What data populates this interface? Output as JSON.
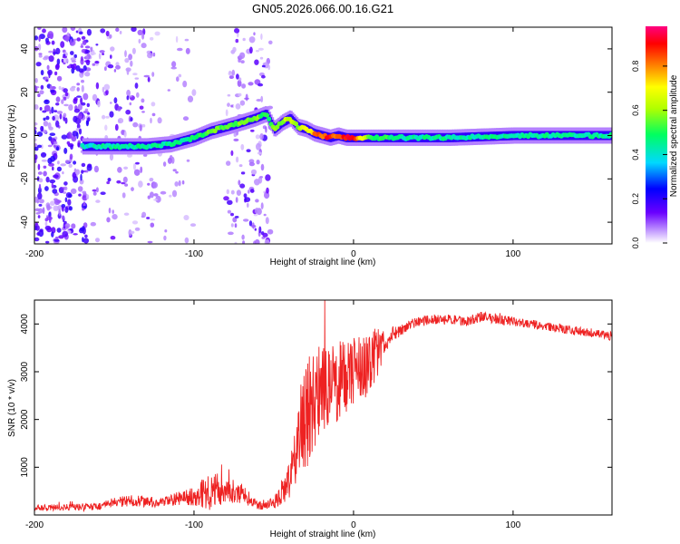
{
  "title": "GN05.2026.066.00.16.G21",
  "chart_data": [
    {
      "type": "heatmap",
      "name": "spectrogram",
      "xlabel": "Height of straight line (km)",
      "ylabel": "Frequency (Hz)",
      "xlim": [
        -200,
        162
      ],
      "ylim": [
        -50,
        50
      ],
      "xticks": [
        -200,
        -100,
        0,
        100
      ],
      "yticks": [
        -40,
        -20,
        0,
        20,
        40
      ],
      "xtick_labels": [
        "-200",
        "-100",
        "0",
        "100"
      ],
      "ytick_labels": [
        "-40",
        "-20",
        "0",
        "20",
        "40"
      ],
      "colorbar": {
        "label": "Normalized spectral amplitude",
        "range": [
          0,
          0.98
        ],
        "ticks": [
          0.0,
          0.2,
          0.4,
          0.6,
          0.8
        ],
        "tick_labels": [
          "0.0",
          "0.2",
          "0.4",
          "0.6",
          "0.8"
        ],
        "colors": [
          "#ffffff",
          "#c9a6ff",
          "#6a00ff",
          "#0000ff",
          "#00d8ff",
          "#00ff60",
          "#b0ff00",
          "#ffff00",
          "#ff8000",
          "#ff0000",
          "#ff0080"
        ]
      },
      "signal_track": {
        "x": [
          -170,
          -150,
          -130,
          -115,
          -100,
          -90,
          -75,
          -62,
          -55,
          -50,
          -45,
          -40,
          -35,
          -30,
          -25,
          -20,
          -15,
          -10,
          -5,
          0,
          10,
          30,
          60,
          100,
          140,
          162
        ],
        "frequency_hz": [
          -5,
          -5,
          -5,
          -4,
          -1,
          2,
          5,
          8,
          10,
          3,
          6,
          8,
          4,
          3,
          1,
          0,
          -1,
          0,
          -1,
          -1,
          -1,
          -1,
          -1,
          0,
          0,
          0
        ],
        "amplitude": [
          0.4,
          0.45,
          0.45,
          0.45,
          0.5,
          0.55,
          0.55,
          0.6,
          0.5,
          0.55,
          0.6,
          0.65,
          0.6,
          0.7,
          0.8,
          0.85,
          0.9,
          0.85,
          0.92,
          0.9,
          0.55,
          0.45,
          0.45,
          0.45,
          0.45,
          0.45
        ]
      },
      "noise_regions": [
        {
          "from": -200,
          "to": -165,
          "level": "strong"
        },
        {
          "from": -165,
          "to": -125,
          "level": "moderate"
        },
        {
          "from": -125,
          "to": -100,
          "level": "weak"
        },
        {
          "from": -80,
          "to": -52,
          "level": "moderate"
        }
      ]
    },
    {
      "type": "line",
      "name": "snr",
      "xlabel": "Height of straight line (km)",
      "ylabel": "SNR (10 * v/v)",
      "xlim": [
        -200,
        162
      ],
      "ylim": [
        0,
        4500
      ],
      "xticks": [
        -200,
        -100,
        0,
        100
      ],
      "yticks": [
        1000,
        2000,
        3000,
        4000
      ],
      "xtick_labels": [
        "-200",
        "-100",
        "0",
        "100"
      ],
      "ytick_labels": [
        "1000",
        "2000",
        "3000",
        "4000"
      ],
      "color": "#ee2222",
      "x": [
        -200,
        -180,
        -160,
        -150,
        -140,
        -130,
        -120,
        -110,
        -100,
        -90,
        -80,
        -70,
        -60,
        -50,
        -40,
        -35,
        -30,
        -25,
        -20,
        -15,
        -10,
        -5,
        0,
        5,
        10,
        15,
        20,
        25,
        30,
        40,
        50,
        60,
        70,
        80,
        90,
        100,
        110,
        120,
        130,
        140,
        150,
        160
      ],
      "y": [
        150,
        160,
        180,
        250,
        300,
        280,
        250,
        350,
        400,
        500,
        550,
        450,
        200,
        250,
        700,
        1500,
        2100,
        2400,
        2600,
        2700,
        2800,
        2900,
        3000,
        3100,
        3200,
        3400,
        3600,
        3800,
        3900,
        4050,
        4100,
        4100,
        4050,
        4150,
        4100,
        4050,
        4000,
        3950,
        3900,
        3850,
        3800,
        3750
      ],
      "noise_amplitude": [
        70,
        70,
        80,
        120,
        120,
        110,
        100,
        150,
        200,
        400,
        300,
        200,
        90,
        120,
        400,
        900,
        1200,
        1100,
        1000,
        900,
        900,
        800,
        700,
        700,
        700,
        500,
        300,
        180,
        120,
        100,
        100,
        100,
        100,
        110,
        100,
        100,
        100,
        90,
        90,
        90,
        90,
        90
      ]
    }
  ]
}
